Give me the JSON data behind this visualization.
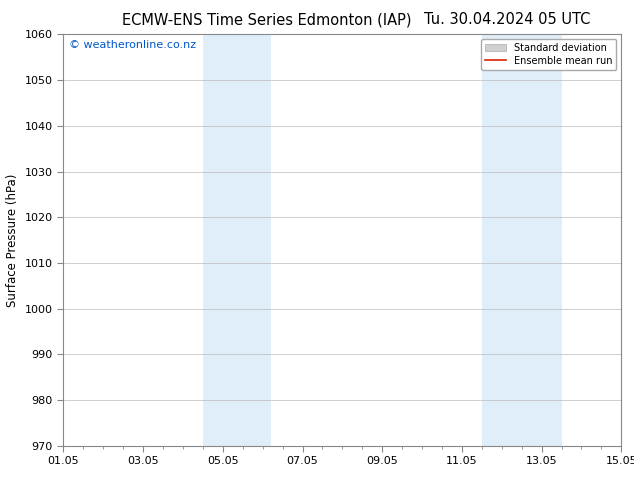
{
  "title_left": "ECMW-ENS Time Series Edmonton (IAP)",
  "title_right": "Tu. 30.04.2024 05 UTC",
  "ylabel": "Surface Pressure (hPa)",
  "ylim": [
    970,
    1060
  ],
  "yticks": [
    970,
    980,
    990,
    1000,
    1010,
    1020,
    1030,
    1040,
    1050,
    1060
  ],
  "xtick_labels": [
    "01.05",
    "03.05",
    "05.05",
    "07.05",
    "09.05",
    "11.05",
    "13.05",
    "15.05"
  ],
  "xtick_positions": [
    0,
    2,
    4,
    6,
    8,
    10,
    12,
    14
  ],
  "xlim": [
    0,
    14
  ],
  "shaded_regions": [
    {
      "x_start": 3.5,
      "x_end": 5.2,
      "color": "#e0eefa"
    },
    {
      "x_start": 10.5,
      "x_end": 12.5,
      "color": "#e0eefa"
    }
  ],
  "watermark_text": "© weatheronline.co.nz",
  "watermark_color": "#0055cc",
  "legend_std_color": "#d0d0d0",
  "legend_mean_color": "#dd2200",
  "bg_color": "#ffffff",
  "plot_bg_color": "#ffffff",
  "grid_color": "#bbbbbb",
  "title_fontsize": 10.5,
  "label_fontsize": 8.5,
  "tick_fontsize": 8,
  "watermark_fontsize": 8
}
